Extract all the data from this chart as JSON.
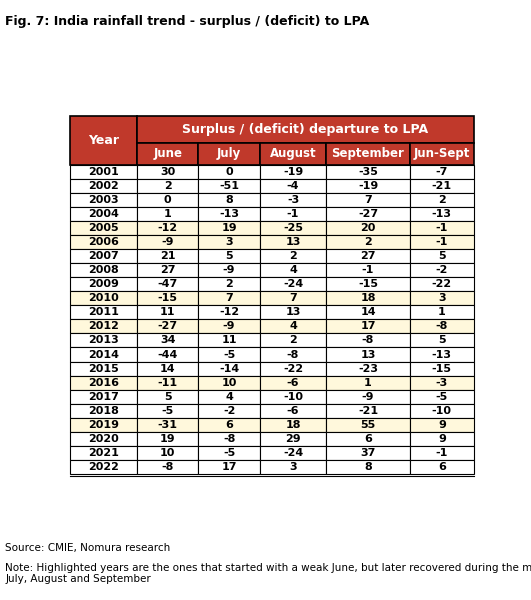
{
  "title": "Fig. 7: India rainfall trend - surplus / (deficit) to LPA",
  "header_main": "Surplus / (deficit) departure to LPA",
  "columns": [
    "Year",
    "June",
    "July",
    "August",
    "September",
    "Jun-Sept"
  ],
  "rows": [
    [
      2001,
      30,
      0,
      -19,
      -35,
      -7
    ],
    [
      2002,
      2,
      -51,
      -4,
      -19,
      -21
    ],
    [
      2003,
      0,
      8,
      -3,
      7,
      2
    ],
    [
      2004,
      1,
      -13,
      -1,
      -27,
      -13
    ],
    [
      2005,
      -12,
      19,
      -25,
      20,
      -1
    ],
    [
      2006,
      -9,
      3,
      13,
      2,
      -1
    ],
    [
      2007,
      21,
      5,
      2,
      27,
      5
    ],
    [
      2008,
      27,
      -9,
      4,
      -1,
      -2
    ],
    [
      2009,
      -47,
      2,
      -24,
      -15,
      -22
    ],
    [
      2010,
      -15,
      7,
      7,
      18,
      3
    ],
    [
      2011,
      11,
      -12,
      13,
      14,
      1
    ],
    [
      2012,
      -27,
      -9,
      4,
      17,
      -8
    ],
    [
      2013,
      34,
      11,
      2,
      -8,
      5
    ],
    [
      2014,
      -44,
      -5,
      -8,
      13,
      -13
    ],
    [
      2015,
      14,
      -14,
      -22,
      -23,
      -15
    ],
    [
      2016,
      -11,
      10,
      -6,
      1,
      -3
    ],
    [
      2017,
      5,
      4,
      -10,
      -9,
      -5
    ],
    [
      2018,
      -5,
      -2,
      -6,
      -21,
      -10
    ],
    [
      2019,
      -31,
      6,
      18,
      55,
      9
    ],
    [
      2020,
      19,
      -8,
      29,
      6,
      9
    ],
    [
      2021,
      10,
      -5,
      -24,
      37,
      -1
    ],
    [
      2022,
      -8,
      17,
      3,
      8,
      6
    ]
  ],
  "highlighted_years": [
    2005,
    2006,
    2010,
    2012,
    2016,
    2019
  ],
  "source_text": "Source: CMIE, Nomura research",
  "note_text": "Note: Highlighted years are the ones that started with a weak June, but later recovered during the months of\nJuly, August and September",
  "header_bg_color": "#C0392B",
  "header_text_color": "#FFFFFF",
  "highlight_bg_color": "#FFF8DC",
  "normal_bg_color": "#FFFFFF",
  "border_color": "#000000",
  "title_color": "#000000"
}
